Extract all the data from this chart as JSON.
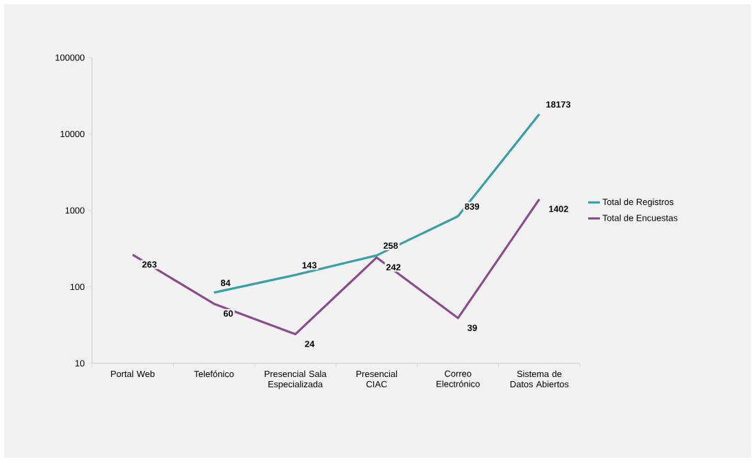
{
  "chart_data": {
    "type": "line",
    "categories": [
      "Portal Web",
      "Telefónico",
      "Presencial Sala Especializada",
      "Presencial CIAC",
      "Correo Electrónico",
      "Sistema de Datos Abiertos"
    ],
    "series": [
      {
        "name": "Total de Registros",
        "color": "#3a9ea5",
        "values": [
          null,
          84,
          143,
          258,
          839,
          18173
        ]
      },
      {
        "name": "Total de Encuestas",
        "color": "#8b4a8c",
        "values": [
          263,
          60,
          24,
          242,
          39,
          1402
        ]
      }
    ],
    "log": "y",
    "ylim": [
      10,
      100000
    ],
    "yticks": [
      10,
      100,
      1000,
      10000,
      100000
    ],
    "data_labels": true,
    "legend": "right",
    "grid": false,
    "marker": "none",
    "line_style": "solid"
  }
}
